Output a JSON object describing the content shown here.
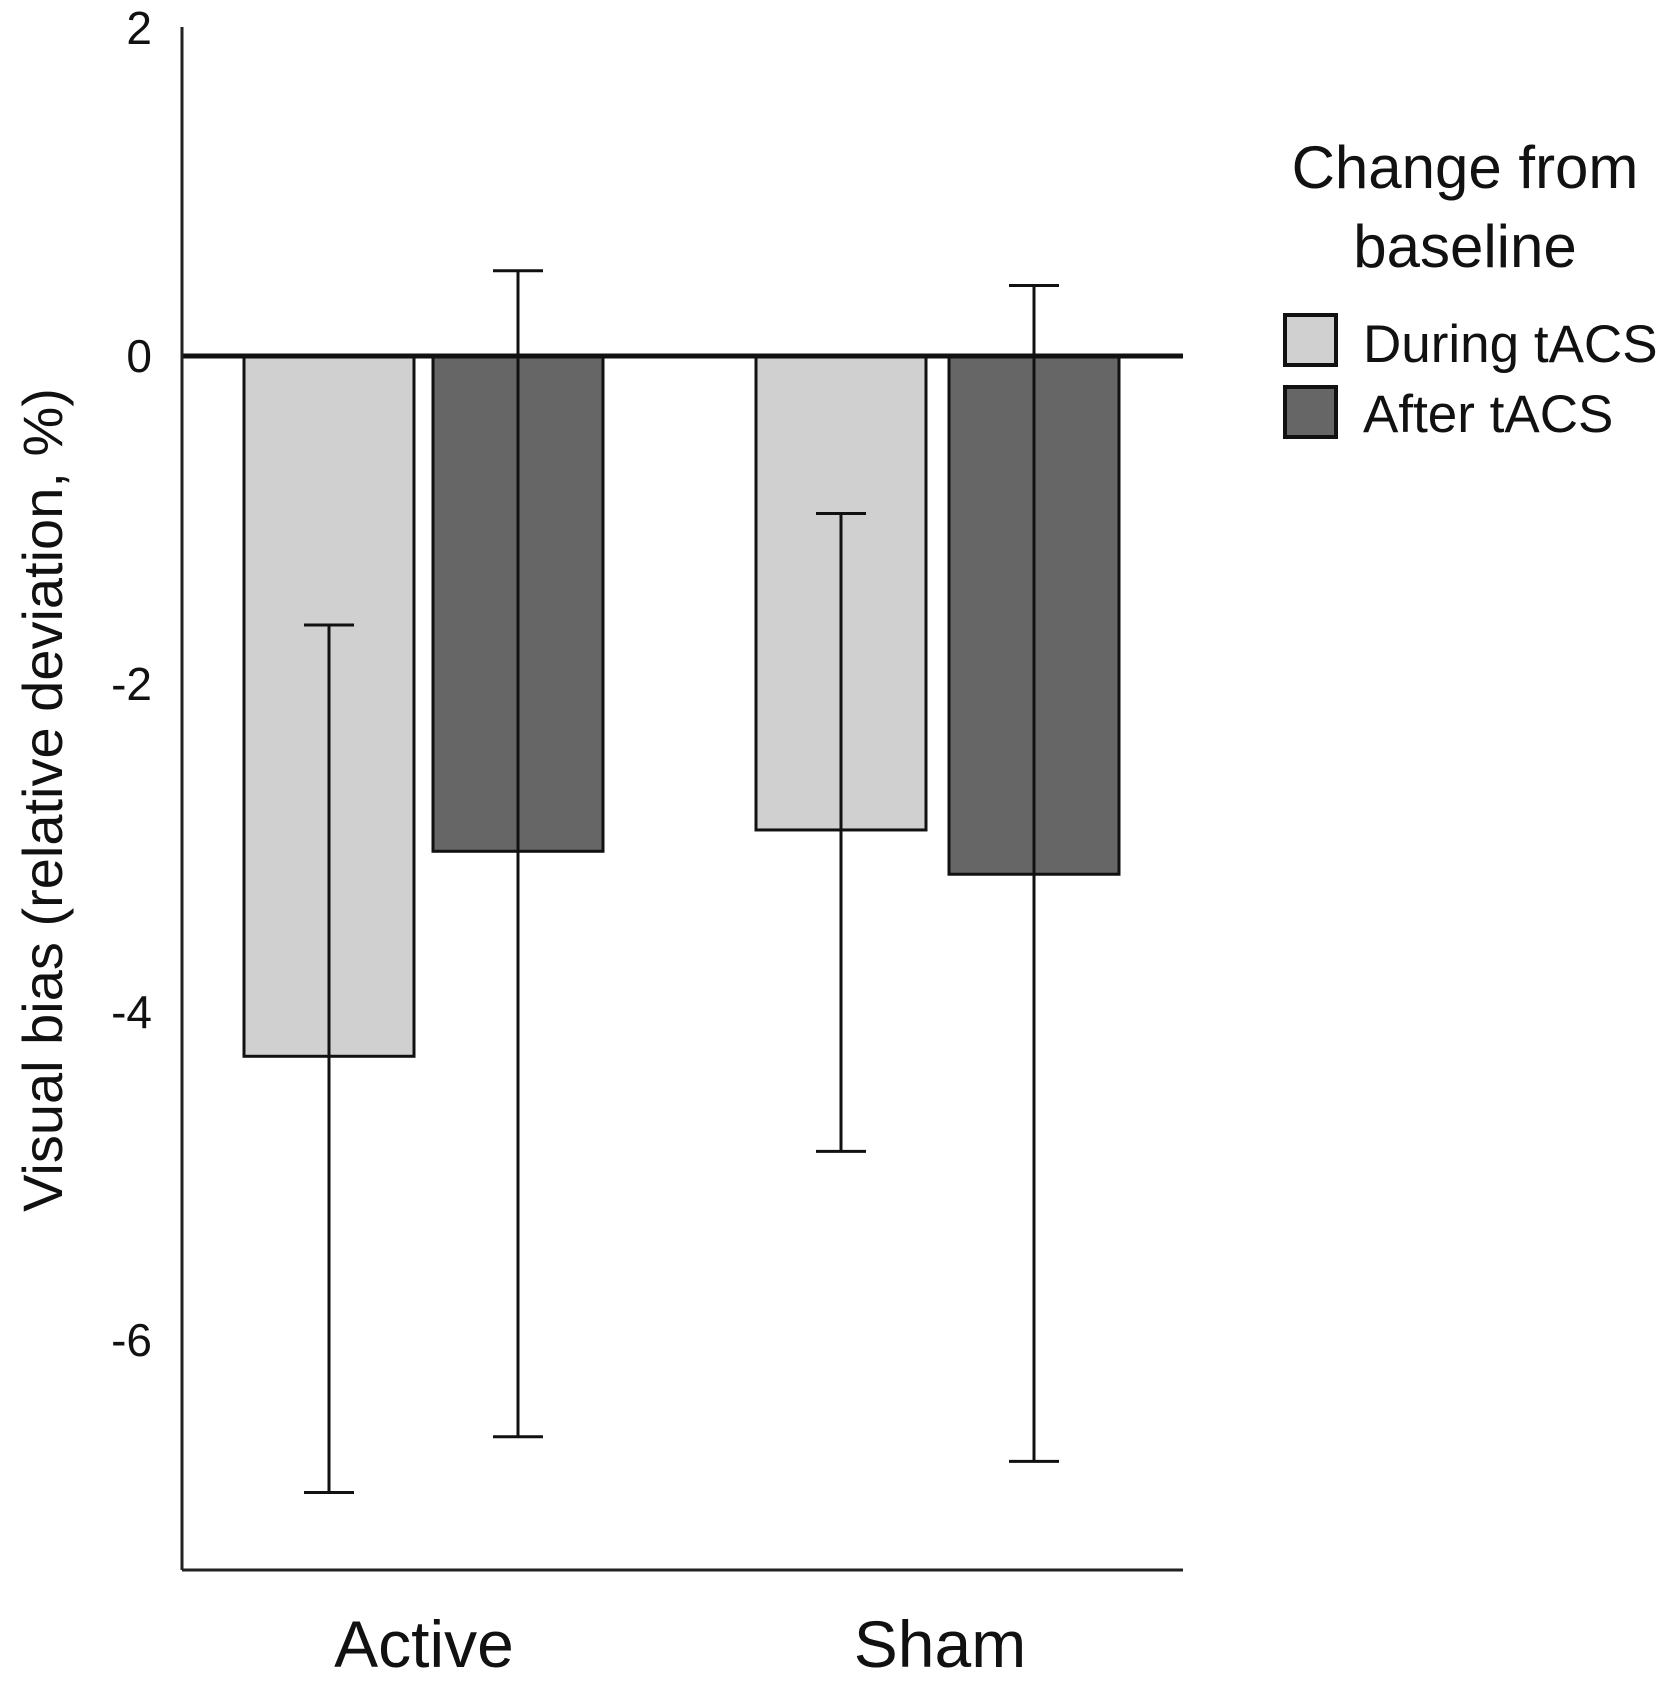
{
  "chart_data": {
    "type": "bar",
    "title": "",
    "xlabel": "",
    "ylabel": "Visual bias (relative deviation, %)",
    "ylim": [
      -7.4,
      2
    ],
    "yticks": [
      2,
      0,
      -2,
      -4,
      -6
    ],
    "ytick_labels": [
      "2",
      "0",
      "-2",
      "-4",
      "-6"
    ],
    "categories": [
      "Active",
      "Sham"
    ],
    "legend": {
      "title_lines": [
        "Change from",
        "baseline"
      ],
      "placement": "right"
    },
    "series": [
      {
        "name": "During tACS",
        "color": "#d0d0d0",
        "values": [
          -4.27,
          -2.89
        ],
        "error_low": [
          -6.93,
          -4.85
        ],
        "error_high": [
          -1.64,
          -0.96
        ]
      },
      {
        "name": "After tACS",
        "color": "#666666",
        "values": [
          -3.02,
          -3.16
        ],
        "error_low": [
          -6.59,
          -6.74
        ],
        "error_high": [
          0.52,
          0.43
        ]
      }
    ],
    "grid": false
  }
}
